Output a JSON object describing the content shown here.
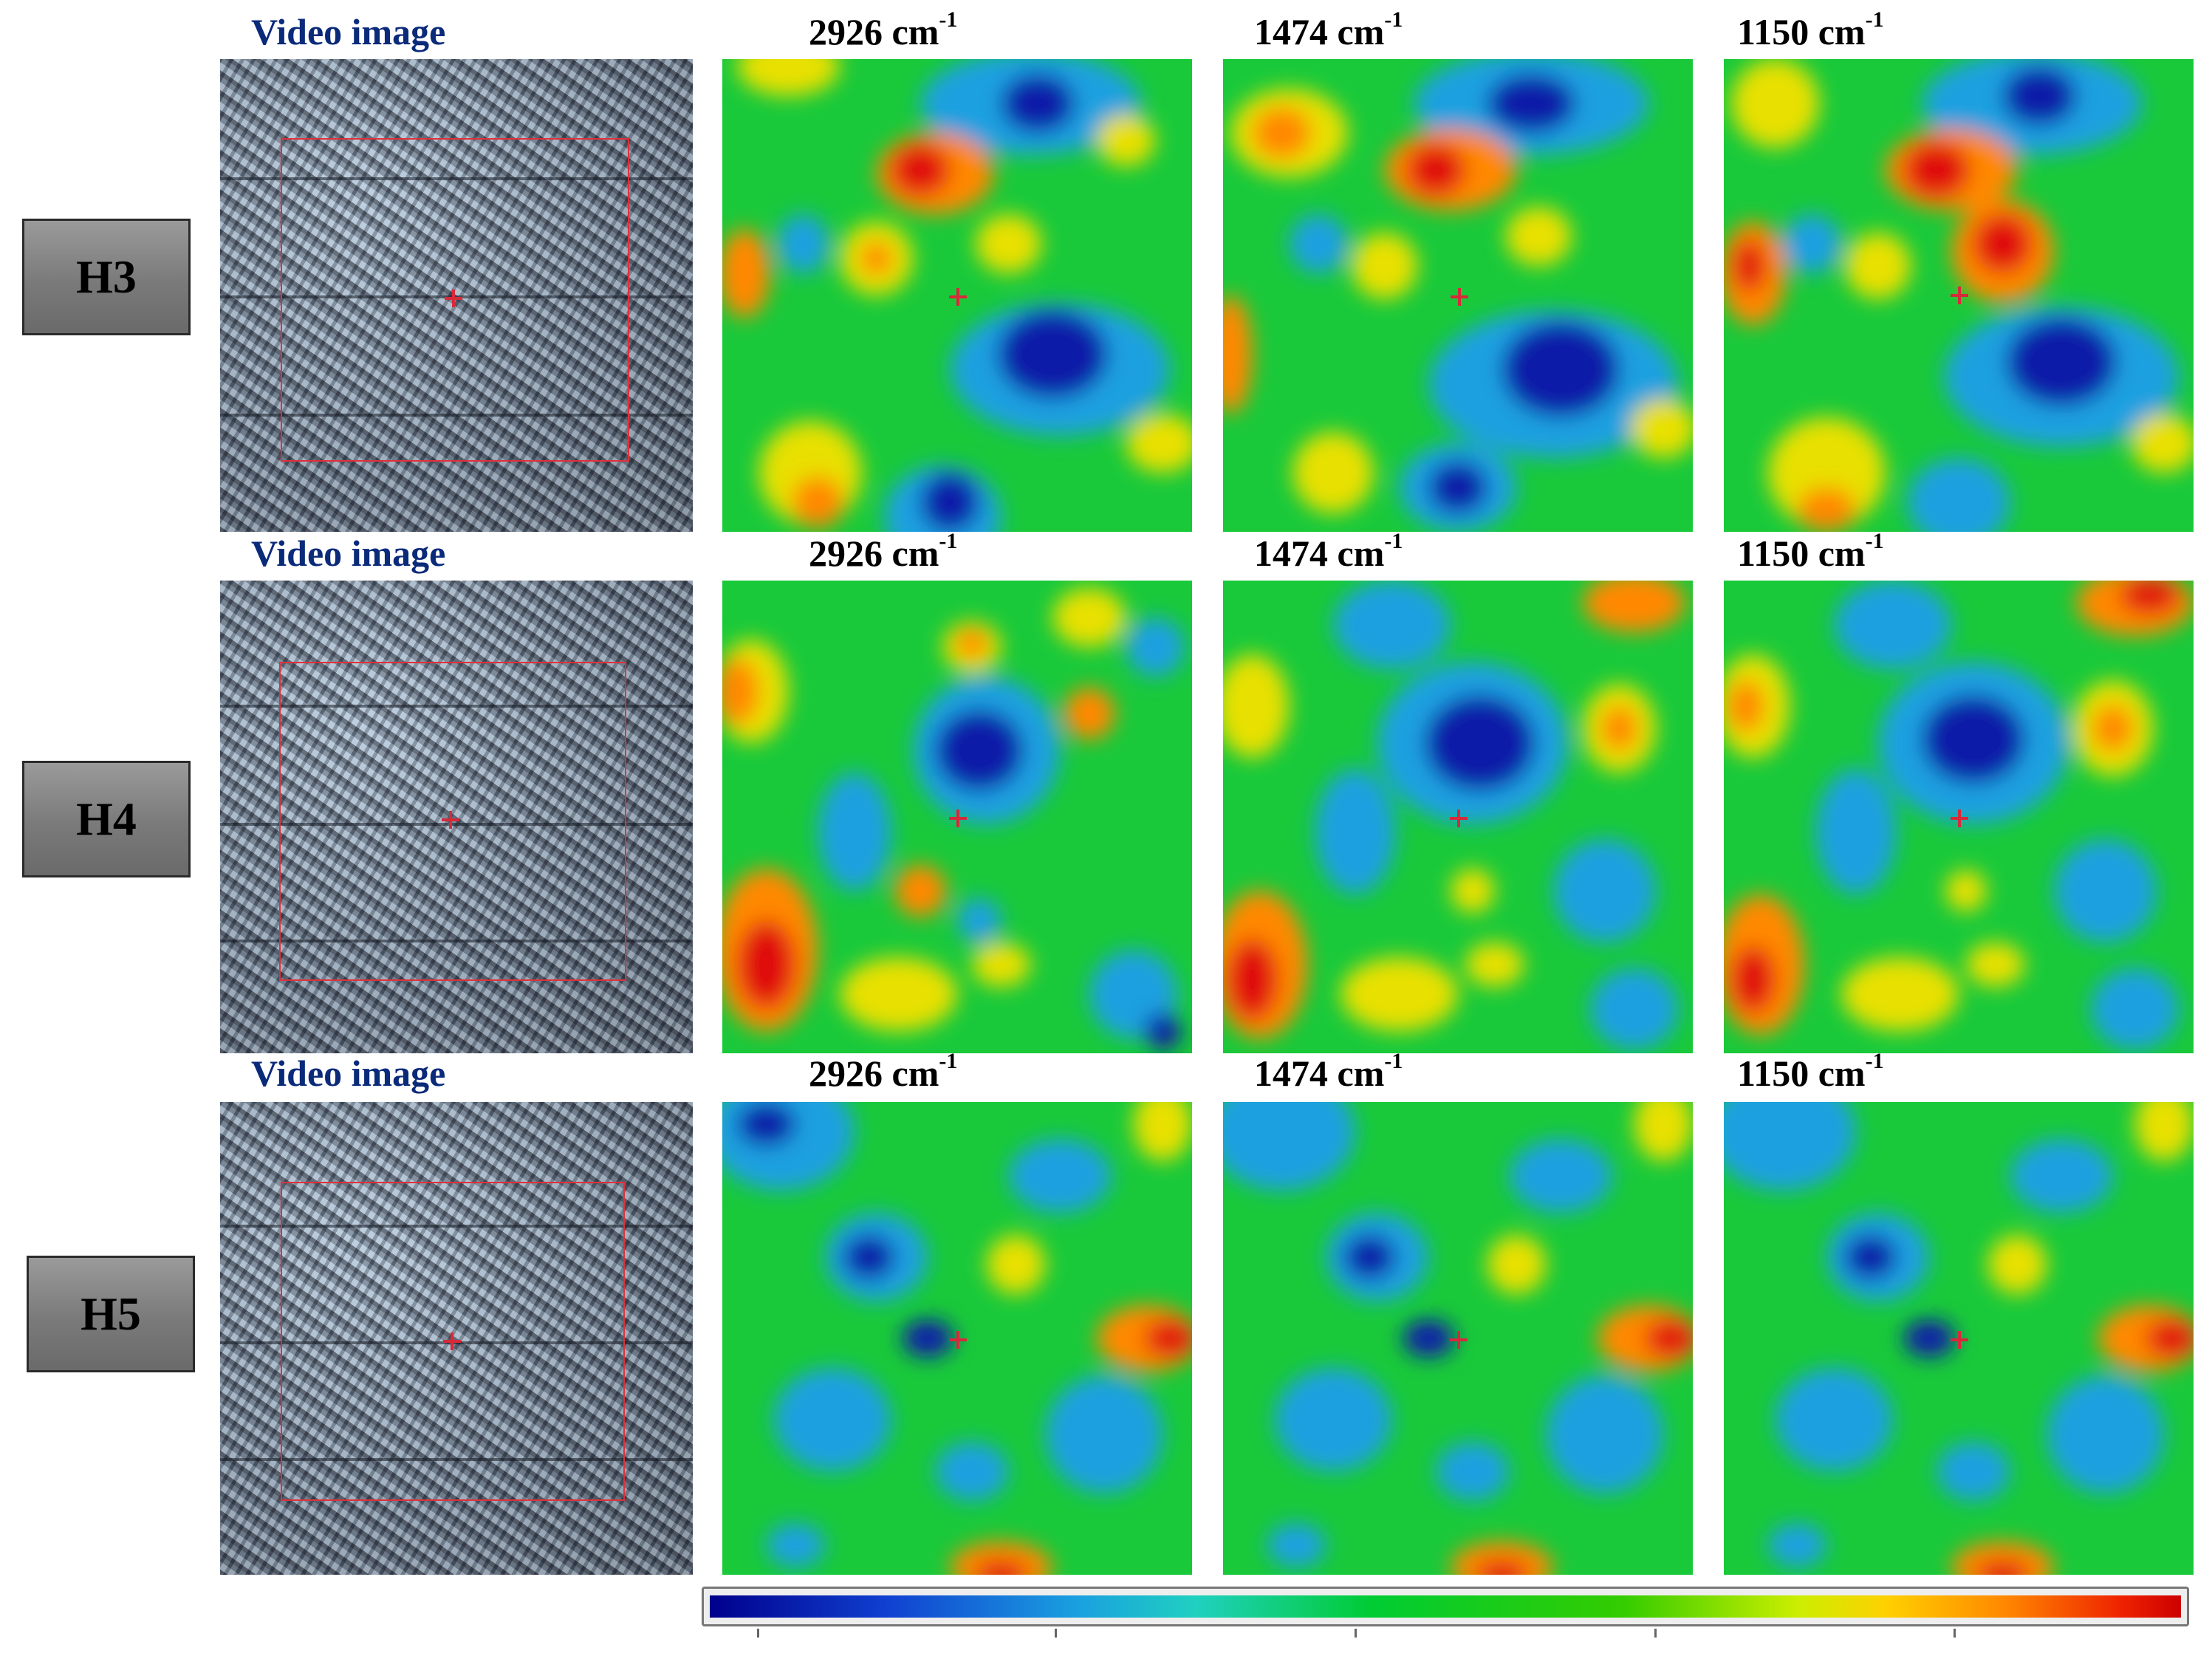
{
  "rows": [
    {
      "label": "H3",
      "video_title": "Video image",
      "map_titles": [
        {
          "num": "2926 cm",
          "sup": "-1"
        },
        {
          "num": "1474 cm",
          "sup": "-1"
        },
        {
          "num": "1150 cm",
          "sup": "-1"
        }
      ]
    },
    {
      "label": "H4",
      "video_title": "Video image",
      "map_titles": [
        {
          "num": "2926 cm",
          "sup": "-1"
        },
        {
          "num": "1474 cm",
          "sup": "-1"
        },
        {
          "num": "1150 cm",
          "sup": "-1"
        }
      ]
    },
    {
      "label": "H5",
      "video_title": "Video image",
      "map_titles": [
        {
          "num": "2926 cm",
          "sup": "-1"
        },
        {
          "num": "1474 cm",
          "sup": "-1"
        },
        {
          "num": "1150 cm",
          "sup": "-1"
        }
      ]
    }
  ],
  "colors": {
    "map_base": "#19c93a",
    "low": "#0a1aa8",
    "mid_low": "#1aa0e0",
    "mid_high": "#e8e000",
    "high": "#e01010",
    "roi": "#e0303a",
    "video_title": "#0a2a7a"
  },
  "colorbar": {
    "from": "blue",
    "to": "red",
    "ticks": 5
  }
}
